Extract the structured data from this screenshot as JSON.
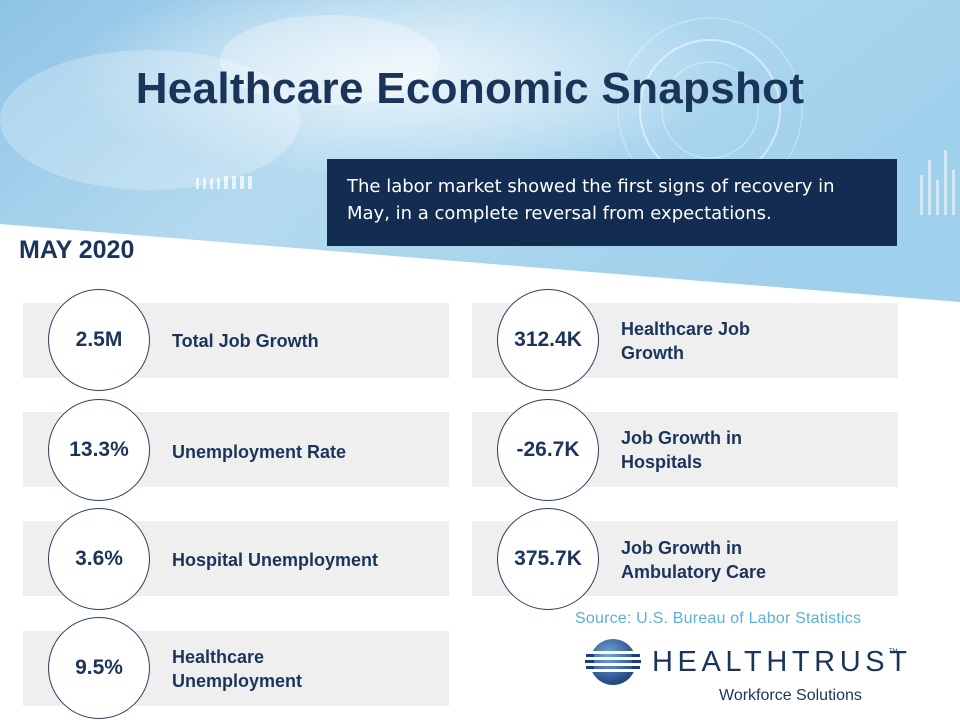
{
  "header": {
    "title": "Healthcare Economic Snapshot",
    "callout": "The labor market showed the first signs of recovery in May, in a complete reversal from expectations.",
    "date": "MAY 2020"
  },
  "stats_left": [
    {
      "value": "2.5M",
      "label": "Total Job Growth"
    },
    {
      "value": "13.3%",
      "label": "Unemployment  Rate"
    },
    {
      "value": "3.6%",
      "label": "Hospital Unemployment"
    },
    {
      "value": "9.5%",
      "label": "Healthcare\nUnemployment"
    }
  ],
  "stats_right": [
    {
      "value": "312.4K",
      "label": "Healthcare Job\nGrowth"
    },
    {
      "value": "-26.7K",
      "label": "Job Growth in\nHospitals"
    },
    {
      "value": "375.7K",
      "label": "Job Growth in\nAmbulatory  Care"
    }
  ],
  "footer": {
    "source": "Source: U.S. Bureau of Labor Statistics",
    "logo_name": "HEALTHTRUST",
    "logo_tm": "TM",
    "logo_subtitle": "Workforce Solutions"
  },
  "colors": {
    "navy": "#1b355a",
    "callout_bg": "#132d52",
    "card_bg": "#efefef",
    "source_blue": "#5bb0d6"
  },
  "icons": [
    "banner-background-image",
    "healthtrust-globe-logo"
  ]
}
